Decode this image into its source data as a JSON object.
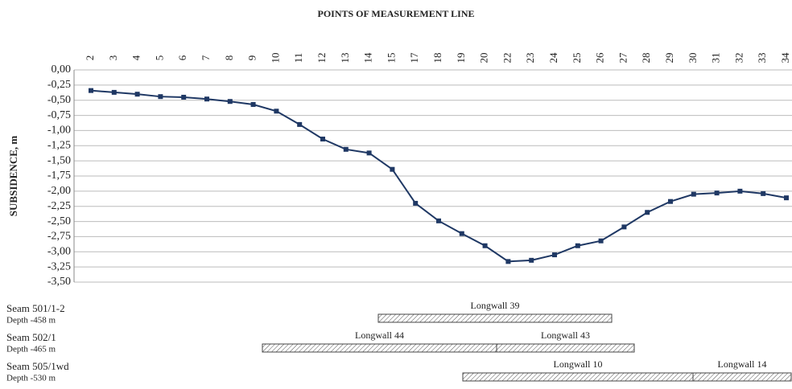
{
  "chart_data": {
    "type": "line",
    "title": "POINTS OF MEASUREMENT LINE",
    "ylabel": "SUBSIDENCE, m",
    "categories": [
      "2",
      "3",
      "4",
      "5",
      "6",
      "7",
      "8",
      "9",
      "10",
      "11",
      "12",
      "13",
      "14",
      "15",
      "17",
      "18",
      "19",
      "20",
      "22",
      "23",
      "24",
      "25",
      "26",
      "27",
      "28",
      "29",
      "30",
      "31",
      "32",
      "33",
      "34"
    ],
    "series": [
      {
        "color": "#1f3864",
        "values": [
          -0.34,
          -0.37,
          -0.4,
          -0.44,
          -0.45,
          -0.48,
          -0.52,
          -0.57,
          -0.68,
          -0.9,
          -1.14,
          -1.31,
          -1.37,
          -1.64,
          -2.2,
          -2.49,
          -2.7,
          -2.9,
          -3.16,
          -3.14,
          -3.05,
          -2.9,
          -2.82,
          -2.59,
          -2.35,
          -2.17,
          -2.05,
          -2.03,
          -2.0,
          -2.04,
          -2.11
        ]
      }
    ],
    "ylim": [
      -3.5,
      0
    ],
    "yticks": [
      {
        "value": 0,
        "label": "0,00"
      },
      {
        "value": -0.25,
        "label": "-0,25"
      },
      {
        "value": -0.5,
        "label": "-0,50"
      },
      {
        "value": -0.75,
        "label": "-0,75"
      },
      {
        "value": -1,
        "label": "-1,00"
      },
      {
        "value": -1.25,
        "label": "-1,25"
      },
      {
        "value": -1.5,
        "label": "-1,50"
      },
      {
        "value": -1.75,
        "label": "-1,75"
      },
      {
        "value": -2,
        "label": "-2,00"
      },
      {
        "value": -2.25,
        "label": "-2,25"
      },
      {
        "value": -2.5,
        "label": "-2,50"
      },
      {
        "value": -2.75,
        "label": "-2,75"
      },
      {
        "value": -3,
        "label": "-3,00"
      },
      {
        "value": -3.25,
        "label": "-3,25"
      },
      {
        "value": -3.5,
        "label": "-3,50"
      }
    ],
    "grid": true,
    "seams": [
      {
        "name": "Seam 501/1-2",
        "depth": "Depth -458 m",
        "longwalls": [
          "Longwall 39"
        ]
      },
      {
        "name": "Seam 502/1",
        "depth": "Depth -465 m",
        "longwalls": [
          "Longwall 44",
          "Longwall 43"
        ]
      },
      {
        "name": "Seam 505/1wd",
        "depth": "Depth -530 m",
        "longwalls": [
          "Longwall 10",
          "Longwall 14"
        ]
      }
    ]
  }
}
